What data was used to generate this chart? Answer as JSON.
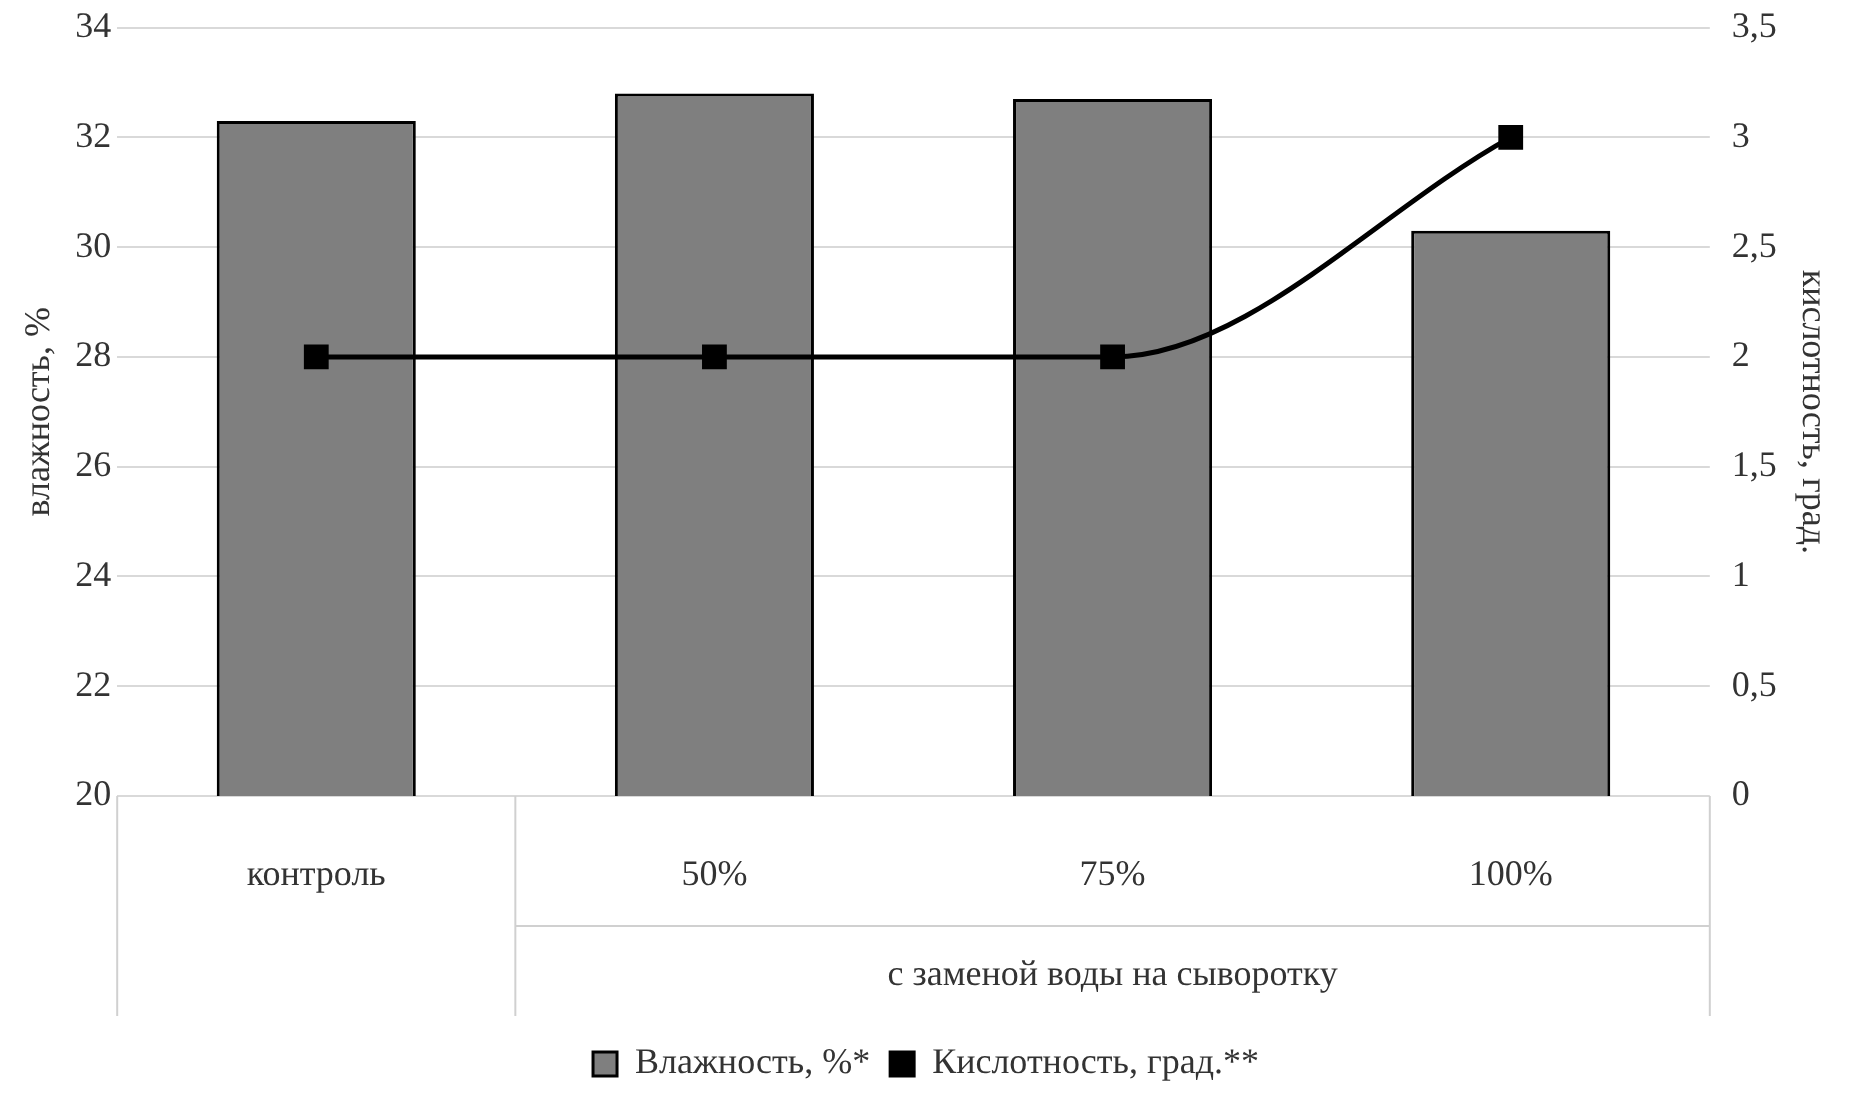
{
  "chart_data": {
    "type": "bar",
    "categories": [
      "контроль",
      "50%",
      "75%",
      "100%"
    ],
    "annotations": [
      "с заменой воды на сыворотку"
    ],
    "ylabel": "влажность, %",
    "y2label": "кислотность, град.",
    "ylim": [
      20,
      34
    ],
    "yticks": [
      20,
      22,
      24,
      26,
      28,
      30,
      32,
      34
    ],
    "y2lim": [
      0,
      3.5
    ],
    "y2ticks": [
      0,
      {
        "value": 0.5,
        "label": "0,5"
      },
      1,
      {
        "value": 1.5,
        "label": "1,5"
      },
      2,
      {
        "value": 2.5,
        "label": "2,5"
      },
      3,
      {
        "value": 3.5,
        "label": "3,5"
      }
    ],
    "series": [
      {
        "name": "Влажность, %*",
        "color": "#7f7f7f",
        "values": [
          32.3,
          32.8,
          32.7,
          30.3
        ]
      },
      {
        "name": "Кислотность, град.**",
        "type": "line",
        "axis": "y2",
        "color": "#000000",
        "values": [
          2,
          2,
          2,
          3
        ]
      }
    ],
    "grid": "y",
    "legend": "bottom",
    "marker": "square",
    "line_style": "solid"
  }
}
